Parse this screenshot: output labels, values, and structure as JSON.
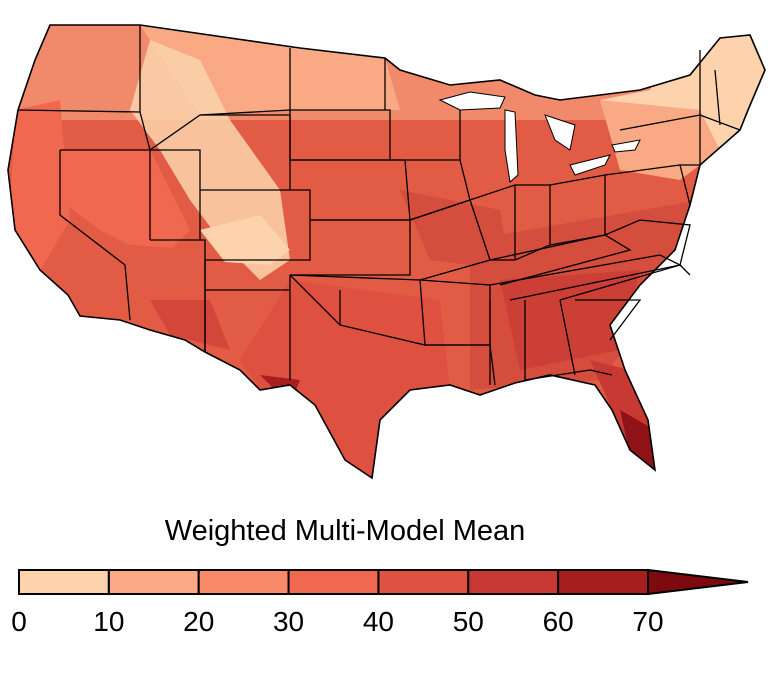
{
  "legend": {
    "title": "Weighted Multi-Model Mean",
    "ticks": [
      "0",
      "10",
      "20",
      "30",
      "40",
      "50",
      "60",
      "70"
    ],
    "bins": [
      {
        "from": 0,
        "to": 10,
        "color": "#fcd3ad"
      },
      {
        "from": 10,
        "to": 20,
        "color": "#f9aa85"
      },
      {
        "from": 20,
        "to": 30,
        "color": "#f78a68"
      },
      {
        "from": 30,
        "to": 40,
        "color": "#f0684f"
      },
      {
        "from": 40,
        "to": 50,
        "color": "#de5141"
      },
      {
        "from": 50,
        "to": 60,
        "color": "#c83934"
      },
      {
        "from": 60,
        "to": 70,
        "color": "#a61e1e"
      }
    ],
    "extend_color": "#7d0a0f"
  },
  "map": {
    "region": "contiguous United States",
    "state_border_color": "#000000"
  }
}
